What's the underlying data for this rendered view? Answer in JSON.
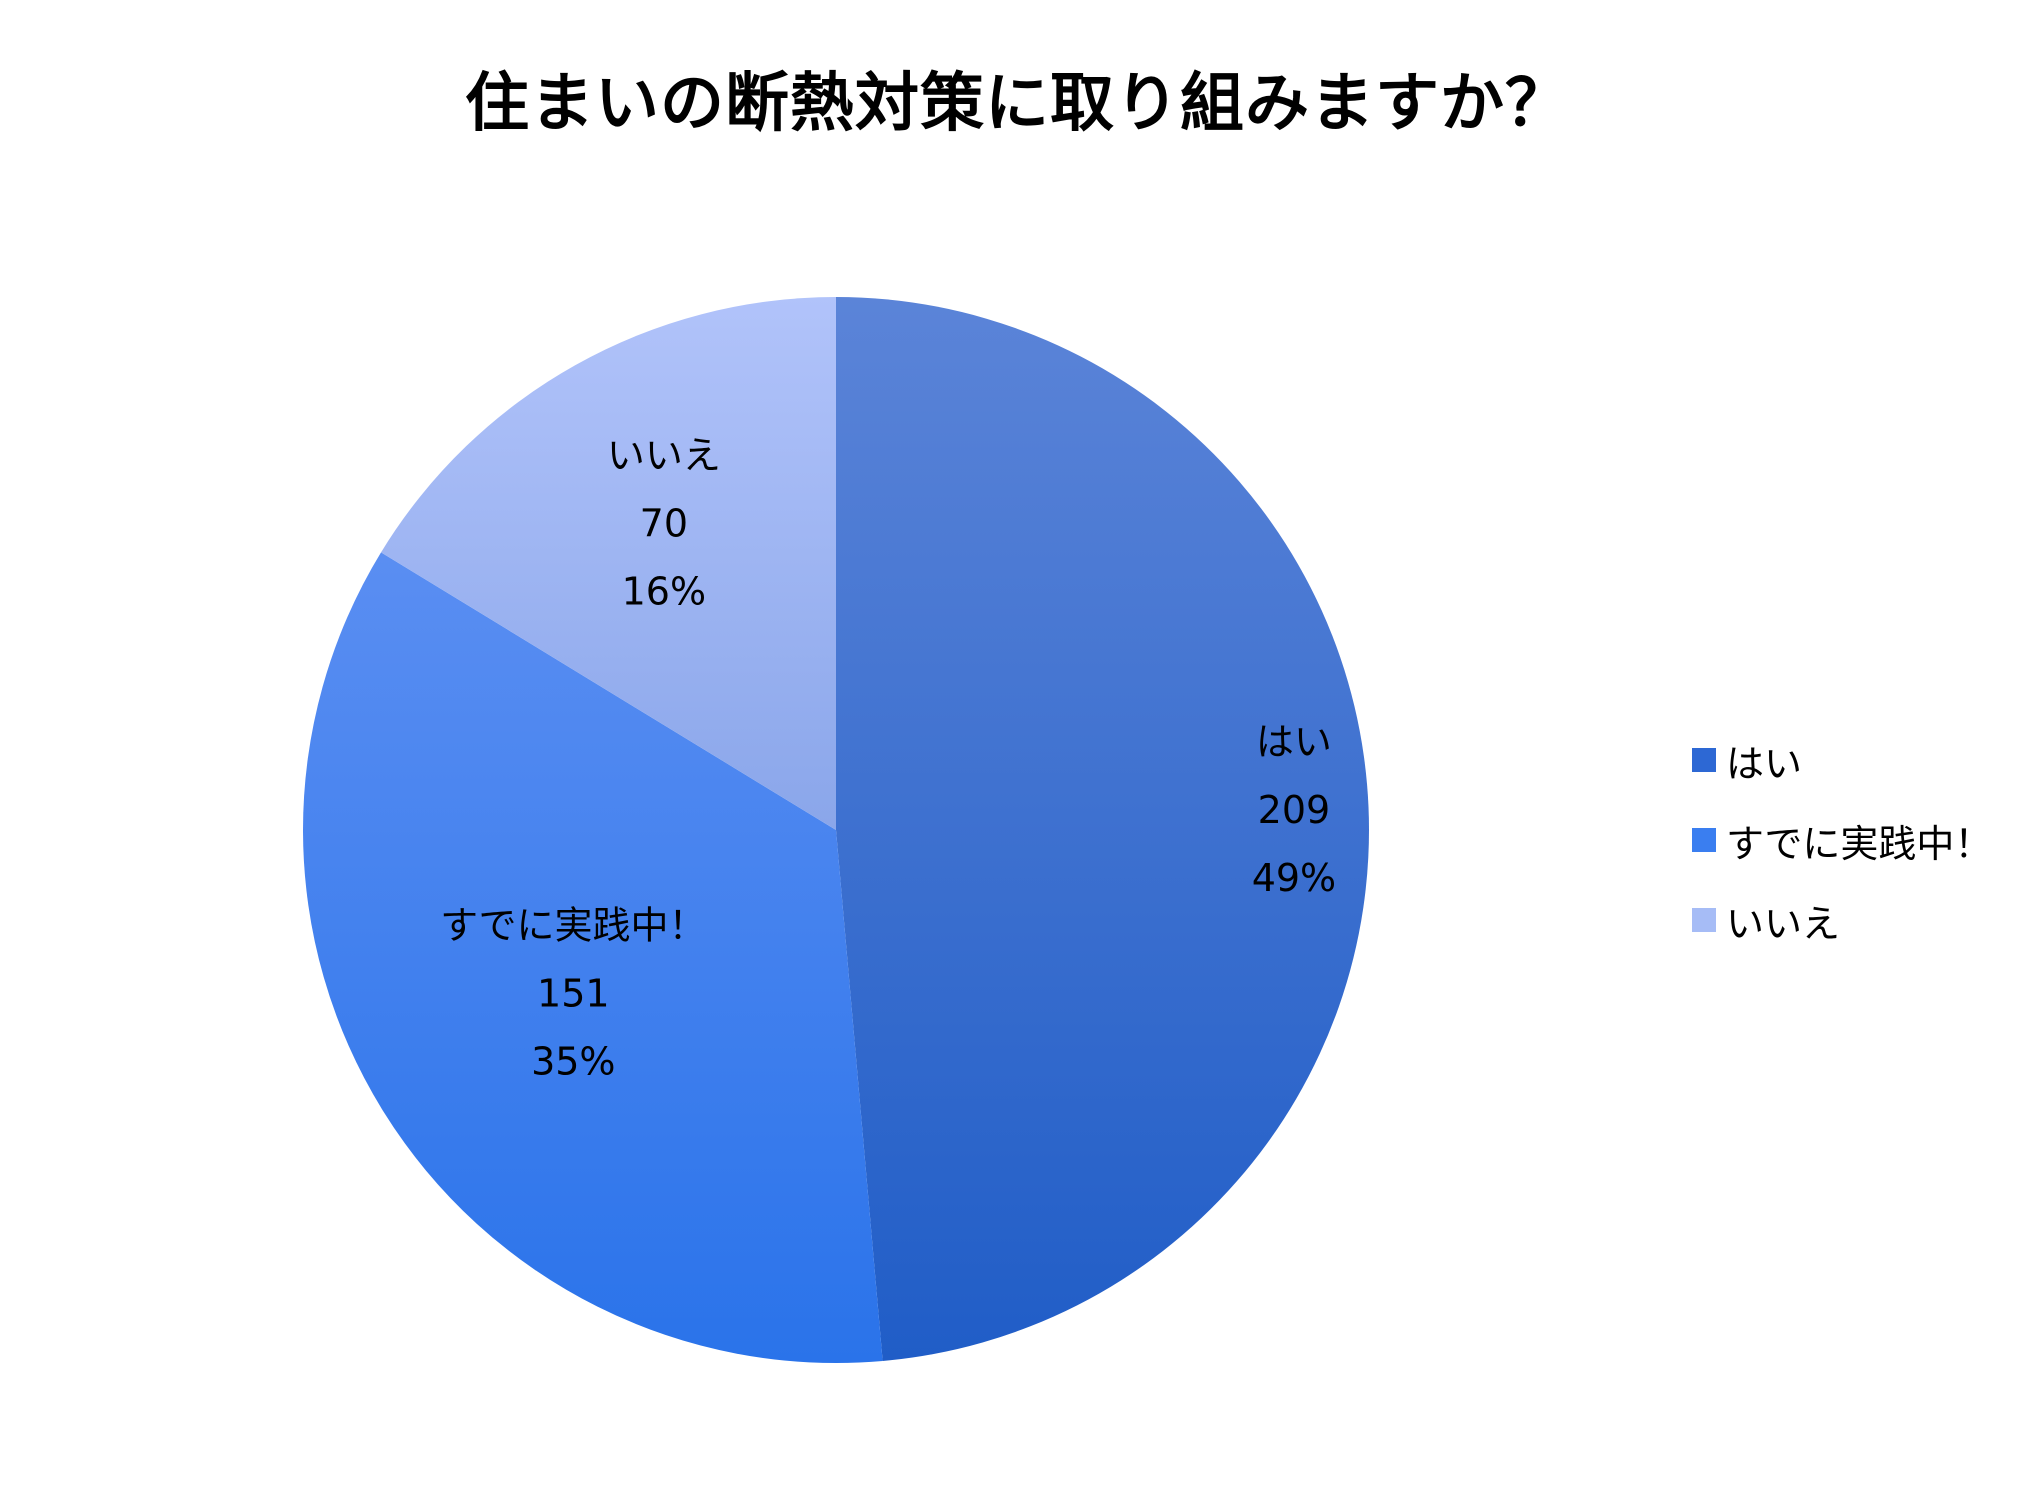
{
  "chart_data": {
    "type": "pie",
    "title": "住まいの断熱対策に取り組みますか？",
    "slices": [
      {
        "label": "はい",
        "value": 209,
        "percent": "49%",
        "color": "#2d68d4"
      },
      {
        "label": "すでに実践中！",
        "value": 151,
        "percent": "35%",
        "color": "#3a7ef0"
      },
      {
        "label": "いいえ",
        "value": 70,
        "percent": "16%",
        "color": "#a6bcf6"
      }
    ],
    "legend": {
      "placement": "right",
      "items": [
        "はい",
        "すでに実践中！",
        "いいえ"
      ]
    }
  }
}
